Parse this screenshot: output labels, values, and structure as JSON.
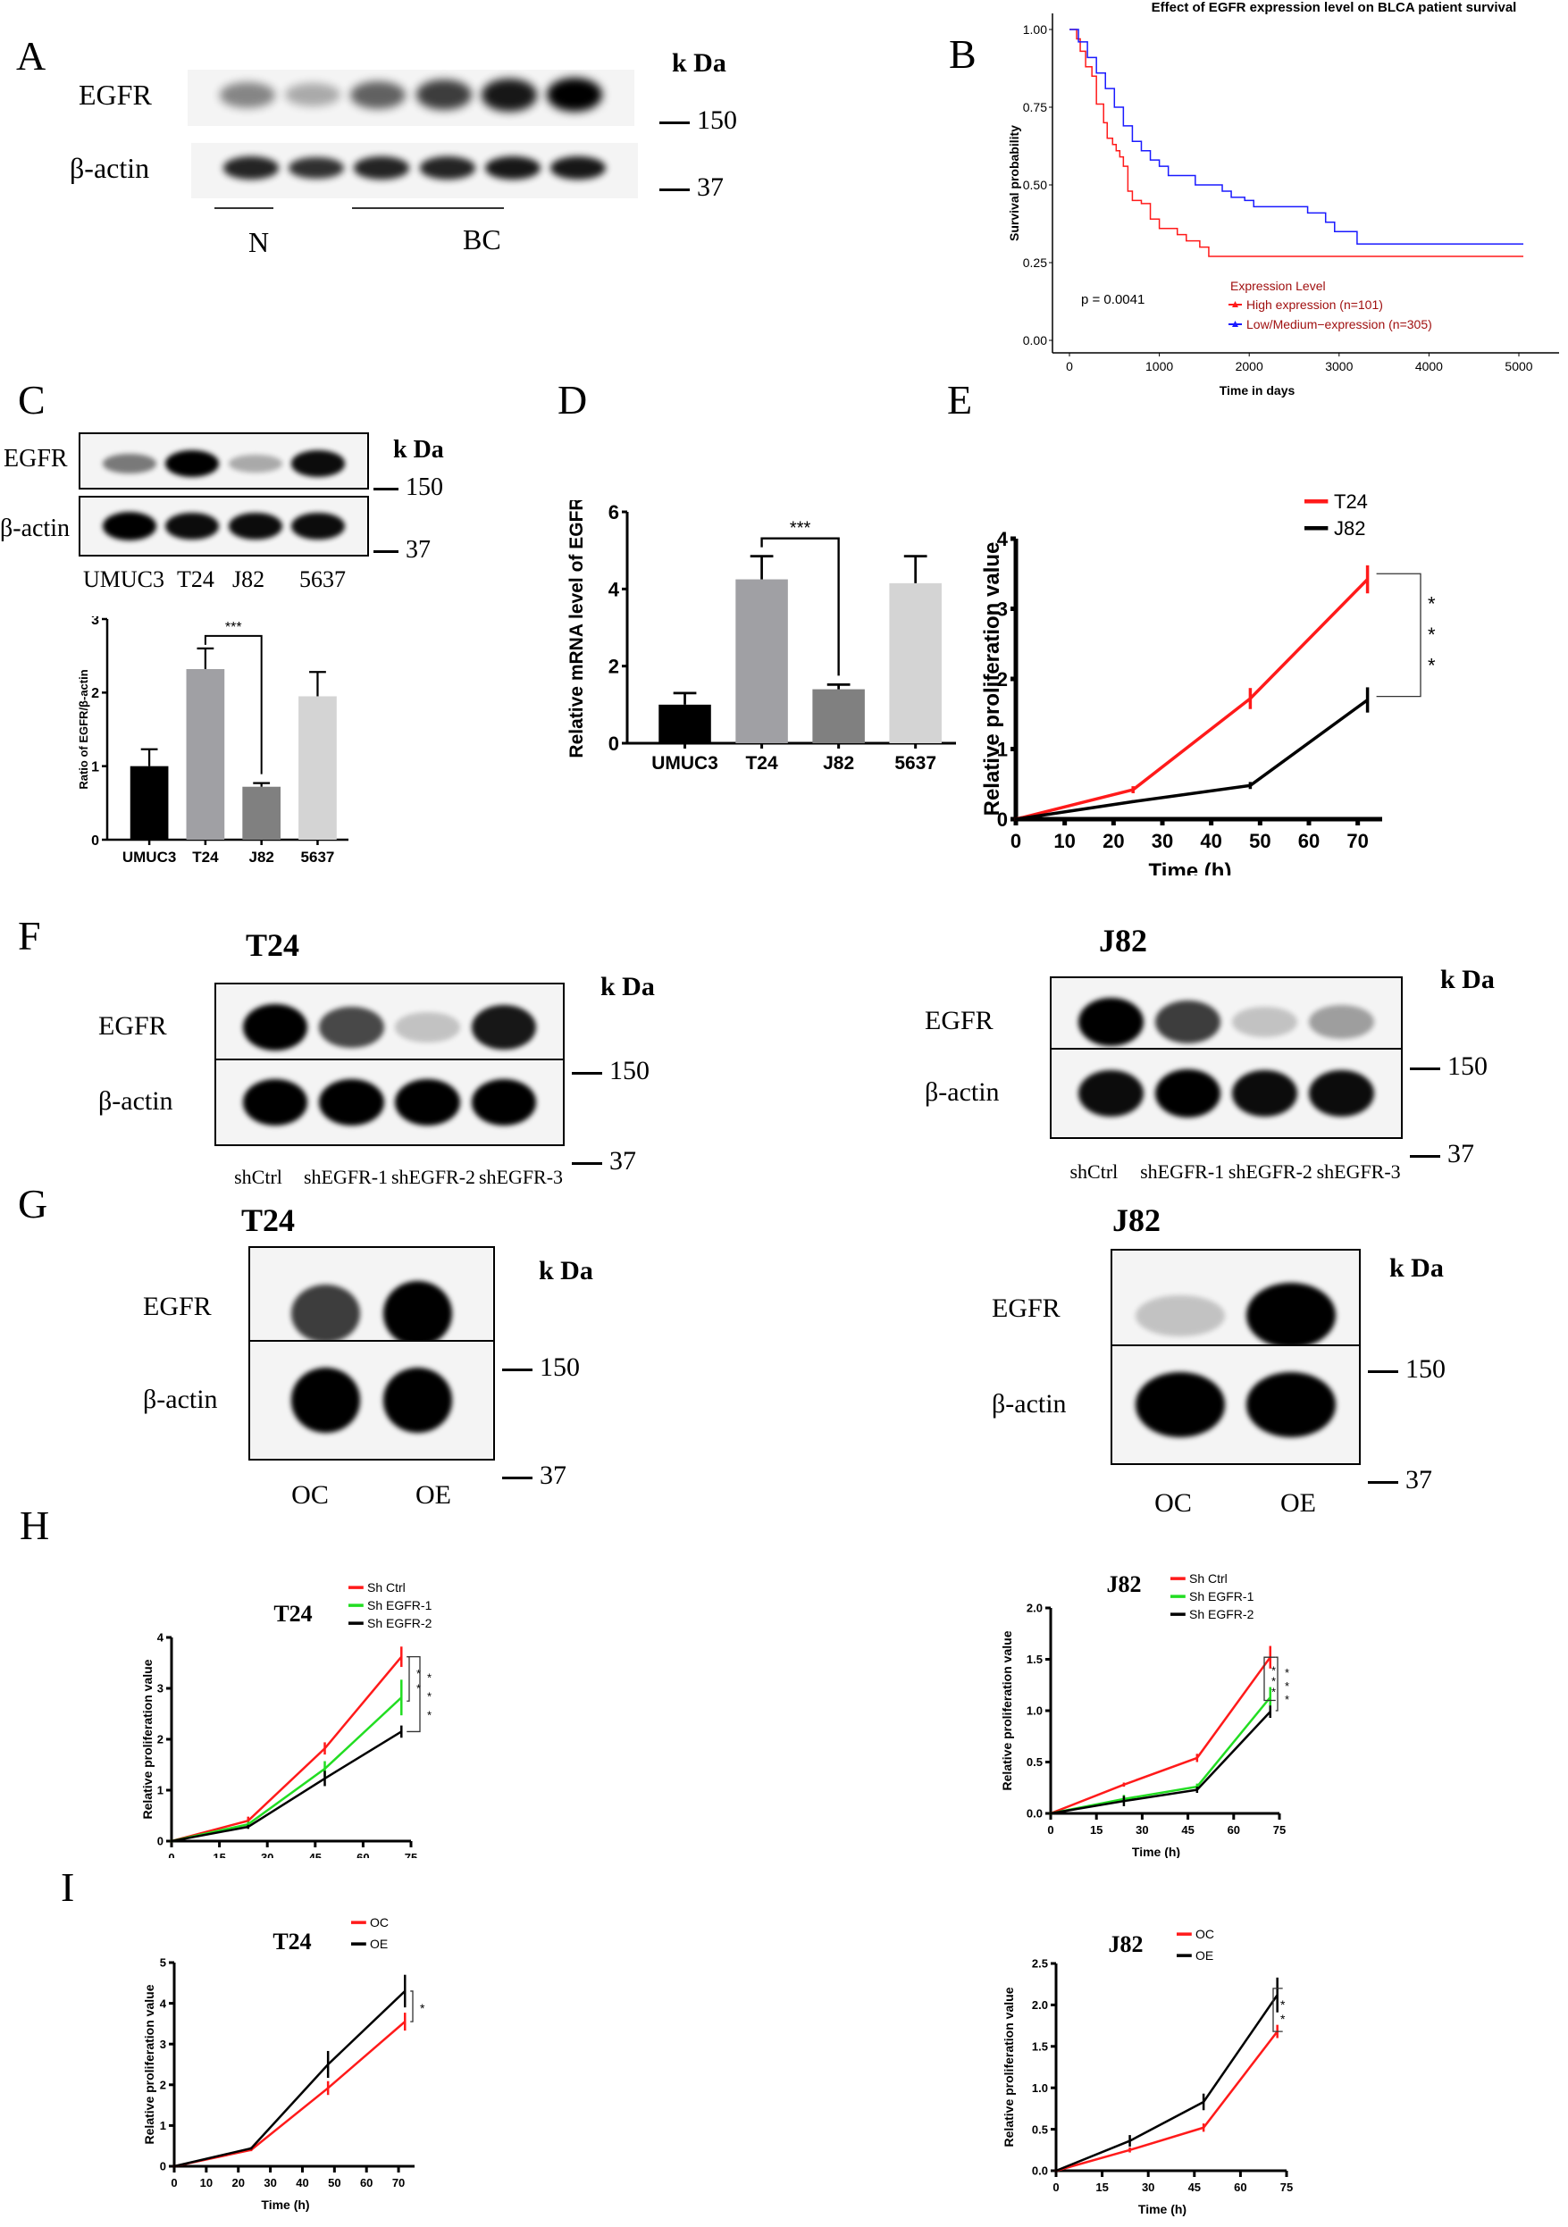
{
  "panels": {
    "A": {
      "letter": "A",
      "row_labels": [
        "EGFR",
        "β-actin"
      ],
      "kda_label": "k Da",
      "markers": [
        "150",
        "37"
      ],
      "groups": [
        "N",
        "BC"
      ],
      "egfr_intensity": [
        0.45,
        0.3,
        0.6,
        0.75,
        0.9,
        1.0
      ],
      "actin_intensity": [
        0.85,
        0.8,
        0.85,
        0.85,
        0.9,
        0.9
      ]
    },
    "B": {
      "letter": "B",
      "title": "Effect of EGFR expression level on BLCA patient survival",
      "p_value_text": "p = 0.0041",
      "legend_title": "Expression Level",
      "legend_items": [
        "High expression (n=101)",
        "Low/Medium−expression (n=305)"
      ],
      "xlabel": "Time in days",
      "ylabel": "Survival probability",
      "xticks": [
        "0",
        "1000",
        "2000",
        "3000",
        "4000",
        "5000"
      ],
      "yticks": [
        "0.00",
        "0.25",
        "0.50",
        "0.75",
        "1.00"
      ]
    },
    "C": {
      "letter": "C",
      "row_labels": [
        "EGFR",
        "β-actin"
      ],
      "kda_label": "k Da",
      "markers": [
        "150",
        "37"
      ],
      "lanes": [
        "UMUC3",
        "T24",
        "J82",
        "5637"
      ],
      "egfr_intensity": [
        0.5,
        1.0,
        0.3,
        0.95
      ],
      "actin_intensity": [
        1.0,
        0.95,
        0.95,
        0.95
      ],
      "sig": "***",
      "ylabel": "Ratio of EGFR/β-actin",
      "yticks": [
        "0",
        "1",
        "2",
        "3"
      ]
    },
    "D": {
      "letter": "D",
      "sig": "***",
      "ylabel": "Relative mRNA level of EGFR",
      "yticks": [
        "0",
        "2",
        "4",
        "6"
      ]
    },
    "E": {
      "letter": "E",
      "sig_stars": [
        "*",
        "*",
        "*"
      ],
      "xlabel": "Time (h)",
      "ylabel": "Relative proliferation value",
      "xticks": [
        "0",
        "10",
        "20",
        "30",
        "40",
        "50",
        "60",
        "70"
      ],
      "yticks": [
        "0",
        "1",
        "2",
        "3",
        "4"
      ],
      "legend": [
        "T24",
        "J82"
      ]
    },
    "F": {
      "letter": "F",
      "blots": [
        {
          "title": "T24",
          "row_labels": [
            "EGFR",
            "β-actin"
          ],
          "kda_label": "k Da",
          "markers": [
            "150",
            "37"
          ],
          "lanes": [
            "shCtrl",
            "shEGFR-1",
            "shEGFR-2",
            "shEGFR-3"
          ],
          "egfr_intensity": [
            1.0,
            0.7,
            0.2,
            0.9
          ],
          "actin_intensity": [
            1.0,
            1.0,
            1.0,
            1.0
          ]
        },
        {
          "title": "J82",
          "row_labels": [
            "EGFR",
            "β-actin"
          ],
          "kda_label": "k Da",
          "markers": [
            "150",
            "37"
          ],
          "lanes": [
            "shCtrl",
            "shEGFR-1",
            "shEGFR-2",
            "shEGFR-3"
          ],
          "egfr_intensity": [
            1.0,
            0.75,
            0.2,
            0.35
          ],
          "actin_intensity": [
            0.95,
            1.0,
            0.95,
            0.95
          ]
        }
      ]
    },
    "G": {
      "letter": "G",
      "blots": [
        {
          "title": "T24",
          "row_labels": [
            "EGFR",
            "β-actin"
          ],
          "kda_label": "k Da",
          "markers": [
            "150",
            "37"
          ],
          "lanes": [
            "OC",
            "OE"
          ],
          "egfr_intensity": [
            0.75,
            1.0
          ],
          "actin_intensity": [
            1.0,
            1.0
          ]
        },
        {
          "title": "J82",
          "row_labels": [
            "EGFR",
            "β-actin"
          ],
          "kda_label": "k Da",
          "markers": [
            "150",
            "37"
          ],
          "lanes": [
            "OC",
            "OE"
          ],
          "egfr_intensity": [
            0.2,
            1.0
          ],
          "actin_intensity": [
            1.0,
            1.0
          ]
        }
      ]
    },
    "H": {
      "letter": "H",
      "charts": [
        {
          "title": "T24",
          "legend": [
            "Sh Ctrl",
            "Sh EGFR-1",
            "Sh EGFR-2"
          ],
          "xlabel": "Time (h)",
          "ylabel": "Relative proliferation value",
          "xticks": [
            "0",
            "15",
            "30",
            "45",
            "60",
            "75"
          ],
          "yticks": [
            "0",
            "1",
            "2",
            "3",
            "4"
          ]
        },
        {
          "title": "J82",
          "legend": [
            "Sh Ctrl",
            "Sh EGFR-1",
            "Sh EGFR-2"
          ],
          "xlabel": "Time (h)",
          "ylabel": "Relative proliferation value",
          "xticks": [
            "0",
            "15",
            "30",
            "45",
            "60",
            "75"
          ],
          "yticks": [
            "0.0",
            "0.5",
            "1.0",
            "1.5",
            "2.0"
          ]
        }
      ]
    },
    "I": {
      "letter": "I",
      "charts": [
        {
          "title": "T24",
          "legend": [
            "OC",
            "OE"
          ],
          "xlabel": "Time (h)",
          "ylabel": "Relative proliferation value",
          "xticks": [
            "0",
            "10",
            "20",
            "30",
            "40",
            "50",
            "60",
            "70"
          ],
          "yticks": [
            "0",
            "1",
            "2",
            "3",
            "4",
            "5"
          ]
        },
        {
          "title": "J82",
          "legend": [
            "OC",
            "OE"
          ],
          "xlabel": "Time (h)",
          "ylabel": "Relative proliferation value",
          "xticks": [
            "0",
            "15",
            "30",
            "45",
            "60",
            "75"
          ],
          "yticks": [
            "0.0",
            "0.5",
            "1.0",
            "1.5",
            "2.0",
            "2.5"
          ]
        }
      ]
    }
  },
  "colors": {
    "red": "#ff1a1a",
    "blue": "#1a1aff",
    "green": "#22dd22",
    "black": "#000000",
    "legend_text_dark_red": "#a01010",
    "bar_umuc3": "#000000",
    "bar_t24": "#a0a0a4",
    "bar_j82": "#808080",
    "bar_5637": "#d4d4d4"
  },
  "chart_data": [
    {
      "id": "B",
      "type": "line",
      "title": "Effect of EGFR expression level on BLCA patient survival",
      "xlabel": "Time in days",
      "ylabel": "Survival probability",
      "xlim": [
        0,
        5100
      ],
      "ylim": [
        0,
        1.0
      ],
      "grid": false,
      "legend_position": "bottom-right",
      "annotation": "p = 0.0041",
      "series": [
        {
          "name": "High expression (n=101)",
          "color": "#ff1a1a",
          "x": [
            0,
            80,
            120,
            180,
            250,
            300,
            380,
            420,
            480,
            520,
            560,
            600,
            650,
            700,
            800,
            900,
            1000,
            1100,
            1200,
            1300,
            1450,
            1550,
            5050
          ],
          "y": [
            1.0,
            0.97,
            0.93,
            0.88,
            0.85,
            0.76,
            0.7,
            0.65,
            0.63,
            0.61,
            0.59,
            0.56,
            0.48,
            0.45,
            0.44,
            0.39,
            0.36,
            0.36,
            0.34,
            0.32,
            0.3,
            0.27,
            0.27
          ]
        },
        {
          "name": "Low/Medium−expression (n=305)",
          "color": "#1a1aff",
          "x": [
            0,
            100,
            200,
            300,
            400,
            500,
            600,
            700,
            800,
            900,
            1000,
            1100,
            1300,
            1400,
            1700,
            1800,
            1950,
            2050,
            2650,
            2850,
            2950,
            3200,
            5050
          ],
          "y": [
            1.0,
            0.96,
            0.91,
            0.86,
            0.81,
            0.75,
            0.69,
            0.64,
            0.61,
            0.58,
            0.56,
            0.53,
            0.53,
            0.5,
            0.48,
            0.46,
            0.45,
            0.43,
            0.41,
            0.38,
            0.35,
            0.31,
            0.31
          ]
        }
      ]
    },
    {
      "id": "C-bar",
      "type": "bar",
      "title": "",
      "xlabel": "",
      "ylabel": "Ratio of EGFR/β-actin",
      "categories": [
        "UMUC3",
        "T24",
        "J82",
        "5637"
      ],
      "values": [
        1.0,
        2.32,
        0.72,
        1.95
      ],
      "errors": [
        0.23,
        0.28,
        0.05,
        0.33
      ],
      "ylim": [
        0,
        3
      ],
      "annotations": [
        {
          "between": [
            "T24",
            "J82"
          ],
          "text": "***"
        }
      ]
    },
    {
      "id": "D",
      "type": "bar",
      "title": "",
      "xlabel": "",
      "ylabel": "Relative mRNA level of EGFR",
      "categories": [
        "UMUC3",
        "T24",
        "J82",
        "5637"
      ],
      "values": [
        1.0,
        4.25,
        1.4,
        4.15
      ],
      "errors": [
        0.3,
        0.6,
        0.12,
        0.7
      ],
      "ylim": [
        0,
        6
      ],
      "annotations": [
        {
          "between": [
            "T24",
            "J82"
          ],
          "text": "***"
        }
      ]
    },
    {
      "id": "E",
      "type": "line",
      "title": "",
      "xlabel": "Time (h)",
      "ylabel": "Relative proliferation value",
      "xlim": [
        0,
        75
      ],
      "ylim": [
        0,
        4
      ],
      "x": [
        0,
        24,
        48,
        72
      ],
      "series": [
        {
          "name": "T24",
          "color": "#ff1a1a",
          "values": [
            0.0,
            0.42,
            1.72,
            3.42
          ],
          "errors": [
            0.02,
            0.05,
            0.15,
            0.2
          ]
        },
        {
          "name": "J82",
          "color": "#000000",
          "values": [
            0.0,
            0.25,
            0.48,
            1.7
          ],
          "errors": [
            0.02,
            0.02,
            0.05,
            0.18
          ]
        }
      ],
      "annotations": [
        {
          "at_x": 72,
          "text": "***"
        }
      ],
      "legend_position": "top-right"
    },
    {
      "id": "H-T24",
      "type": "line",
      "title": "T24",
      "xlabel": "Time (h)",
      "ylabel": "Relative proliferation value",
      "xlim": [
        0,
        75
      ],
      "ylim": [
        0,
        4
      ],
      "x": [
        0,
        24,
        48,
        72
      ],
      "series": [
        {
          "name": "Sh Ctrl",
          "color": "#ff1a1a",
          "values": [
            0.0,
            0.4,
            1.82,
            3.62
          ],
          "errors": [
            0.02,
            0.08,
            0.12,
            0.2
          ]
        },
        {
          "name": "Sh EGFR-1",
          "color": "#22dd22",
          "values": [
            0.0,
            0.33,
            1.42,
            2.82
          ],
          "errors": [
            0.02,
            0.05,
            0.15,
            0.35
          ]
        },
        {
          "name": "Sh EGFR-2",
          "color": "#000000",
          "values": [
            0.0,
            0.28,
            1.23,
            2.15
          ],
          "errors": [
            0.02,
            0.04,
            0.15,
            0.12
          ]
        }
      ],
      "annotations": [
        {
          "pair": [
            "Sh Ctrl",
            "Sh EGFR-1"
          ],
          "text": "**"
        },
        {
          "pair": [
            "Sh Ctrl",
            "Sh EGFR-2"
          ],
          "text": "***"
        }
      ],
      "legend_position": "top-right"
    },
    {
      "id": "H-J82",
      "type": "line",
      "title": "J82",
      "xlabel": "Time (h)",
      "ylabel": "Relative proliferation value",
      "xlim": [
        0,
        75
      ],
      "ylim": [
        0,
        2.0
      ],
      "x": [
        0,
        24,
        48,
        72
      ],
      "series": [
        {
          "name": "Sh Ctrl",
          "color": "#ff1a1a",
          "values": [
            0.0,
            0.28,
            0.54,
            1.52
          ],
          "errors": [
            0.01,
            0.02,
            0.04,
            0.11
          ]
        },
        {
          "name": "Sh EGFR-1",
          "color": "#22dd22",
          "values": [
            0.0,
            0.14,
            0.26,
            1.13
          ],
          "errors": [
            0.01,
            0.04,
            0.03,
            0.1
          ]
        },
        {
          "name": "Sh EGFR-2",
          "color": "#000000",
          "values": [
            0.0,
            0.12,
            0.23,
            0.99
          ],
          "errors": [
            0.01,
            0.05,
            0.03,
            0.06
          ]
        }
      ],
      "annotations": [
        {
          "pair": [
            "Sh Ctrl",
            "Sh EGFR-1"
          ],
          "text": "***"
        },
        {
          "pair": [
            "Sh Ctrl",
            "Sh EGFR-2"
          ],
          "text": "***"
        }
      ],
      "legend_position": "top-right"
    },
    {
      "id": "I-T24",
      "type": "line",
      "title": "T24",
      "xlabel": "Time (h)",
      "ylabel": "Relative proliferation value",
      "xlim": [
        0,
        75
      ],
      "ylim": [
        0,
        5
      ],
      "x": [
        0,
        24,
        48,
        72
      ],
      "series": [
        {
          "name": "OC",
          "color": "#ff1a1a",
          "values": [
            0.0,
            0.4,
            1.92,
            3.55
          ],
          "errors": [
            0.02,
            0.03,
            0.17,
            0.22
          ]
        },
        {
          "name": "OE",
          "color": "#000000",
          "values": [
            0.0,
            0.44,
            2.5,
            4.3
          ],
          "errors": [
            0.02,
            0.03,
            0.33,
            0.4
          ]
        }
      ],
      "annotations": [
        {
          "pair": [
            "OC",
            "OE"
          ],
          "text": "*"
        }
      ],
      "legend_position": "top-right"
    },
    {
      "id": "I-J82",
      "type": "line",
      "title": "J82",
      "xlabel": "Time (h)",
      "ylabel": "Relative proliferation value",
      "xlim": [
        0,
        75
      ],
      "ylim": [
        0,
        2.5
      ],
      "x": [
        0,
        24,
        48,
        72
      ],
      "series": [
        {
          "name": "OC",
          "color": "#ff1a1a",
          "values": [
            0.0,
            0.25,
            0.52,
            1.68
          ],
          "errors": [
            0.01,
            0.03,
            0.05,
            0.08
          ]
        },
        {
          "name": "OE",
          "color": "#000000",
          "values": [
            0.0,
            0.36,
            0.83,
            2.12
          ],
          "errors": [
            0.01,
            0.07,
            0.1,
            0.21
          ]
        }
      ],
      "annotations": [
        {
          "pair": [
            "OC",
            "OE"
          ],
          "text": "**"
        }
      ],
      "legend_position": "top-right"
    }
  ]
}
